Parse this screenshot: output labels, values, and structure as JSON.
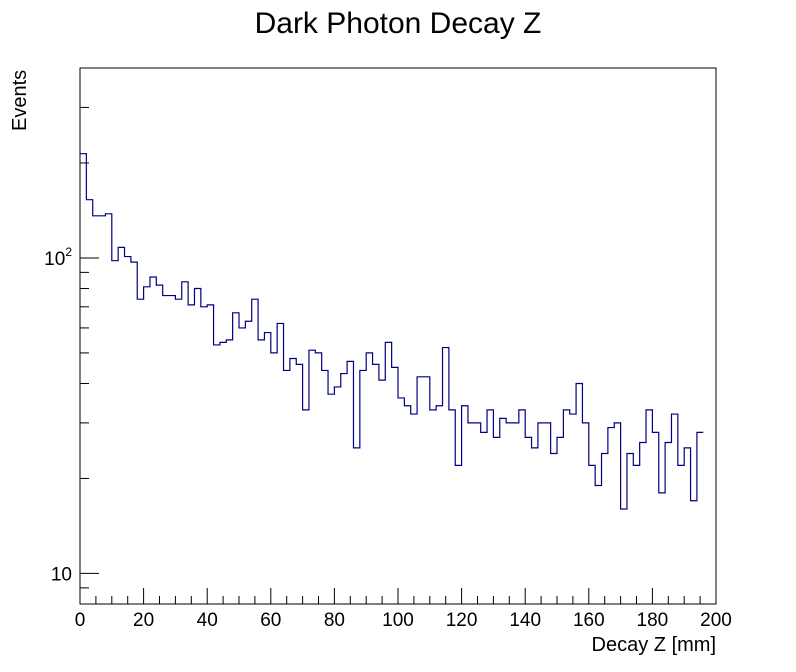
{
  "chart_data": {
    "type": "histogram",
    "title": "Dark Photon Decay Z",
    "xlabel": "Decay Z [mm]",
    "ylabel": "Events",
    "xlim": [
      0,
      200
    ],
    "ylim": [
      8,
      400
    ],
    "yscale": "log",
    "bin_width": 2,
    "line_color": "#000080",
    "x_ticks": [
      0,
      20,
      40,
      60,
      80,
      100,
      120,
      140,
      160,
      180,
      200
    ],
    "x_tick_labels": [
      "0",
      "20",
      "40",
      "60",
      "80",
      "100",
      "120",
      "140",
      "160",
      "180",
      "200"
    ],
    "y_major_ticks": [
      {
        "value": 10,
        "base": "10",
        "exponent": ""
      },
      {
        "value": 100,
        "base": "10",
        "exponent": "2"
      }
    ],
    "counts": [
      214,
      153,
      136,
      136,
      138,
      98,
      108,
      101,
      97,
      74,
      81,
      87,
      82,
      76,
      76,
      74,
      84,
      71,
      80,
      70,
      71,
      53,
      54,
      55,
      67,
      60,
      63,
      74,
      55,
      58,
      50,
      62,
      44,
      48,
      46,
      33,
      51,
      50,
      44,
      37,
      39,
      43,
      47,
      25,
      44,
      50,
      46,
      41,
      54,
      45,
      36,
      34,
      32,
      42,
      42,
      33,
      34,
      52,
      33,
      22,
      34,
      30,
      30,
      28,
      33,
      27,
      31,
      30,
      30,
      33,
      27,
      25,
      30,
      30,
      24,
      27,
      33,
      32,
      40,
      30,
      22,
      19,
      24,
      29,
      30,
      16,
      24,
      22,
      26,
      33,
      28,
      18,
      26,
      32,
      22,
      25,
      17,
      28
    ]
  }
}
